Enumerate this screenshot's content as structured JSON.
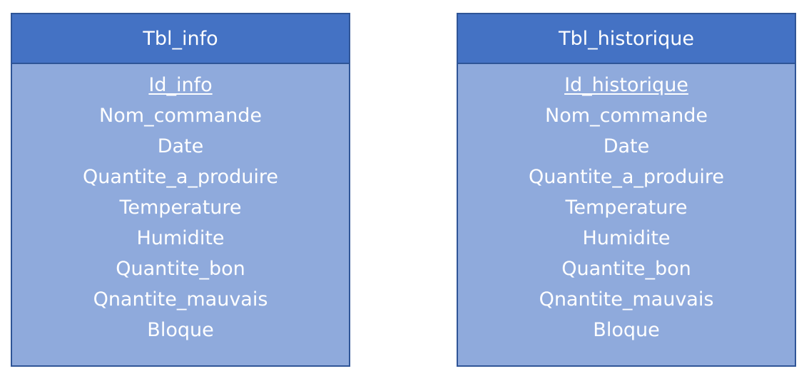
{
  "tables": [
    {
      "name": "Tbl_info",
      "primary_key": "Id_info",
      "fields": [
        "Nom_commande",
        "Date",
        "Quantite_a_produire",
        "Temperature",
        "Humidite",
        "Quantite_bon",
        "Qnantite_mauvais",
        "Bloque"
      ]
    },
    {
      "name": "Tbl_historique",
      "primary_key": "Id_historique",
      "fields": [
        "Nom_commande",
        "Date",
        "Quantite_a_produire",
        "Temperature",
        "Humidite",
        "Quantite_bon",
        "Qnantite_mauvais",
        "Bloque"
      ]
    }
  ],
  "colors": {
    "header": "#4472c4",
    "body": "#8faadc",
    "border": "#2f5597",
    "text": "#ffffff"
  }
}
